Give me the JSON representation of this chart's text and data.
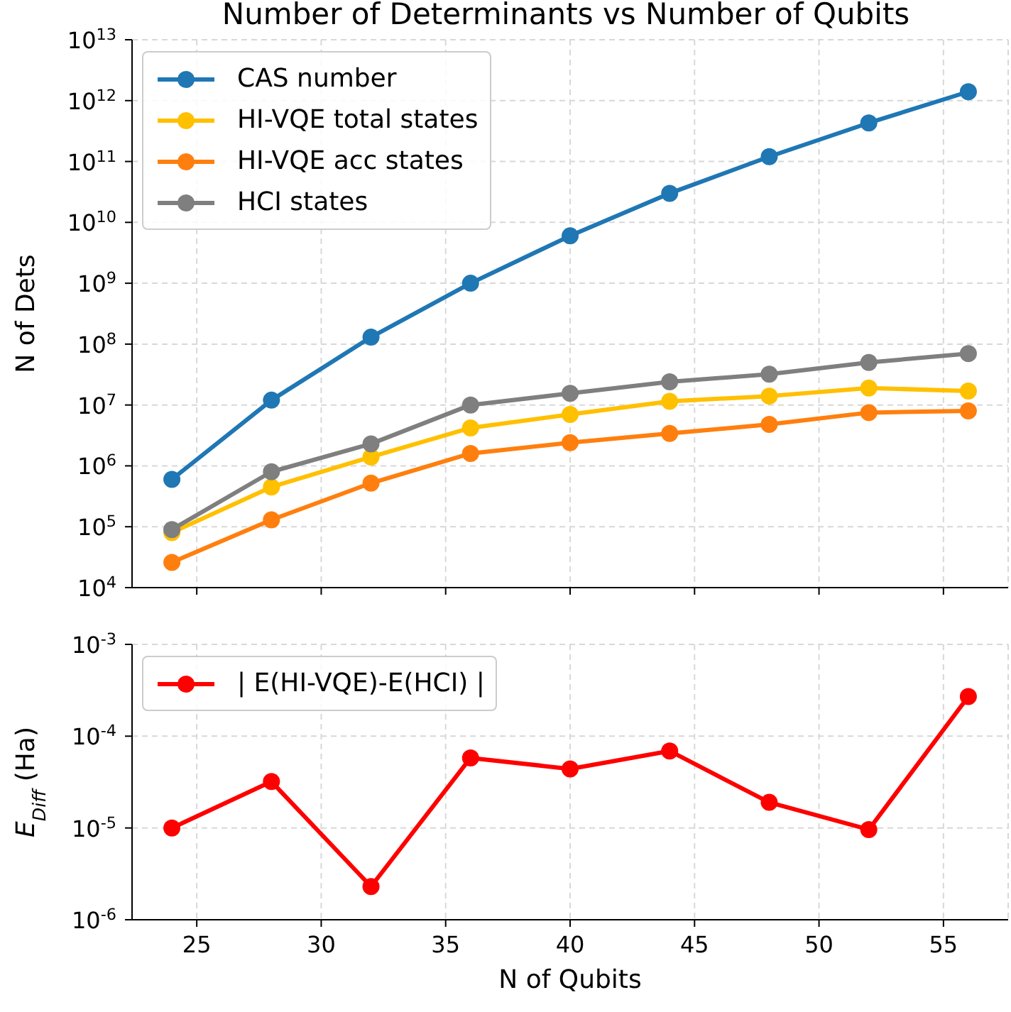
{
  "chart_data": [
    {
      "type": "line",
      "title": "Number of Determinants vs Number of Qubits",
      "ylabel": "N of Dets",
      "x": [
        24,
        28,
        32,
        36,
        40,
        44,
        48,
        52,
        56
      ],
      "series": [
        {
          "name": "CAS number",
          "color": "#1f77b4",
          "values": [
            600000.0,
            12000000.0,
            130000000.0,
            1000000000.0,
            6000000000.0,
            30000000000.0,
            120000000000.0,
            430000000000.0,
            1400000000000.0
          ]
        },
        {
          "name": "HI-VQE total states",
          "color": "#ffc000",
          "values": [
            80000.0,
            450000.0,
            1400000.0,
            4200000.0,
            7000000.0,
            11500000.0,
            14000000.0,
            19000000.0,
            17000000.0
          ]
        },
        {
          "name": "HI-VQE acc states",
          "color": "#ff7f0e",
          "values": [
            26000.0,
            130000.0,
            520000.0,
            1600000.0,
            2400000.0,
            3400000.0,
            4800000.0,
            7500000.0,
            8000000.0
          ]
        },
        {
          "name": "HCI states",
          "color": "#7f7f7f",
          "values": [
            90000.0,
            800000.0,
            2300000.0,
            10000000.0,
            15500000.0,
            24000000.0,
            32000000.0,
            50000000.0,
            70000000.0
          ]
        }
      ],
      "xlim": [
        22.4,
        57.6
      ],
      "xticks": [
        25,
        30,
        35,
        40,
        45,
        50,
        55
      ],
      "ylim": [
        10000.0,
        10000000000000.0
      ],
      "yticks": [
        {
          "value": 10000.0,
          "label": "10$^{4}$"
        },
        {
          "value": 100000.0,
          "label": "10$^{5}$"
        },
        {
          "value": 1000000.0,
          "label": "10$^{6}$"
        },
        {
          "value": 10000000.0,
          "label": "10$^{7}$"
        },
        {
          "value": 100000000.0,
          "label": "10$^{8}$"
        },
        {
          "value": 1000000000.0,
          "label": "10$^{9}$"
        },
        {
          "value": 10000000000.0,
          "label": "10$^{10}$"
        },
        {
          "value": 100000000000.0,
          "label": "10$^{11}$"
        },
        {
          "value": 1000000000000.0,
          "label": "10$^{12}$"
        },
        {
          "value": 10000000000000.0,
          "label": "10$^{13}$"
        }
      ],
      "log": "y",
      "grid": true,
      "legend": "top left",
      "marker": "circle",
      "line_style": "solid",
      "tick_labels": "y"
    },
    {
      "type": "line",
      "xlabel": "N of Qubits",
      "ylabel": "E$_{Diff}$ (Ha)",
      "x": [
        24,
        28,
        32,
        36,
        40,
        44,
        48,
        52,
        56
      ],
      "series": [
        {
          "name": "| E(HI-VQE)-E(HCI) |",
          "color": "#ff0000",
          "values": [
            1e-05,
            3.2e-05,
            2.3e-06,
            5.8e-05,
            4.4e-05,
            6.9e-05,
            1.9e-05,
            9.6e-06,
            0.00027
          ]
        }
      ],
      "xlim": [
        22.4,
        57.6
      ],
      "xticks": [
        25,
        30,
        35,
        40,
        45,
        50,
        55
      ],
      "ylim": [
        1e-06,
        0.001
      ],
      "yticks": [
        {
          "value": 1e-06,
          "label": "10$^{-6}$"
        },
        {
          "value": 1e-05,
          "label": "10$^{-5}$"
        },
        {
          "value": 0.0001,
          "label": "10$^{-4}$"
        },
        {
          "value": 0.001,
          "label": "10$^{-3}$"
        }
      ],
      "log": "y",
      "grid": true,
      "legend": "top left",
      "marker": "circle",
      "line_style": "solid"
    }
  ]
}
